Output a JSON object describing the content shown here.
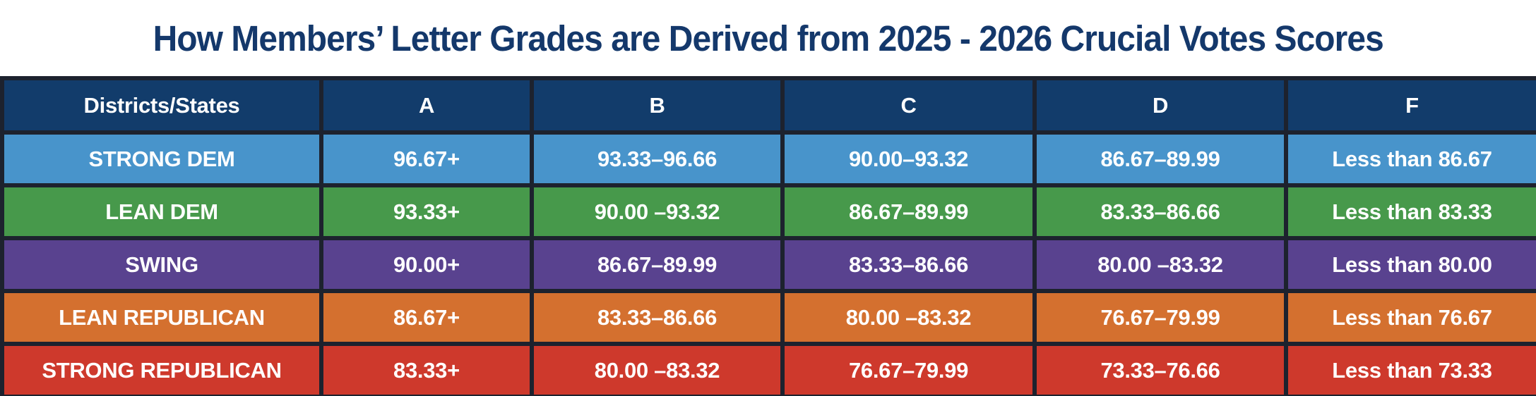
{
  "title": "How Members’ Letter Grades are Derived from 2025 - 2026 Crucial Votes Scores",
  "colors": {
    "title_text": "#14386b",
    "header_bg": "#123c6b",
    "header_text": "#ffffff",
    "cell_text": "#ffffff",
    "border": "#1d222e",
    "page_bg": "#ffffff",
    "strong_dem": "#4894cb",
    "lean_dem": "#47994b",
    "swing": "#59428f",
    "lean_republican": "#d4702f",
    "strong_republican": "#ce392c"
  },
  "table": {
    "columns": [
      "Districts/States",
      "A",
      "B",
      "C",
      "D",
      "F"
    ],
    "rows": [
      {
        "label": "STRONG DEM",
        "color": "#4894cb",
        "grades": [
          "96.67+",
          "93.33–96.66",
          "90.00–93.32",
          "86.67–89.99",
          "Less than 86.67"
        ]
      },
      {
        "label": "LEAN DEM",
        "color": "#47994b",
        "grades": [
          "93.33+",
          "90.00 –93.32",
          "86.67–89.99",
          "83.33–86.66",
          "Less than 83.33"
        ]
      },
      {
        "label": "SWING",
        "color": "#59428f",
        "grades": [
          "90.00+",
          "86.67–89.99",
          "83.33–86.66",
          "80.00 –83.32",
          "Less than 80.00"
        ]
      },
      {
        "label": "LEAN REPUBLICAN",
        "color": "#d4702f",
        "grades": [
          "86.67+",
          "83.33–86.66",
          "80.00 –83.32",
          "76.67–79.99",
          "Less than 76.67"
        ]
      },
      {
        "label": "STRONG REPUBLICAN",
        "color": "#ce392c",
        "grades": [
          "83.33+",
          "80.00 –83.32",
          "76.67–79.99",
          "73.33–76.66",
          "Less than 73.33"
        ]
      }
    ]
  },
  "chart_data": {
    "type": "table",
    "title": "How Members’ Letter Grades are Derived from 2025 - 2026 Crucial Votes Scores",
    "columns": [
      "Districts/States",
      "A",
      "B",
      "C",
      "D",
      "F"
    ],
    "rows": [
      [
        "STRONG DEM",
        "96.67+",
        "93.33–96.66",
        "90.00–93.32",
        "86.67–89.99",
        "Less than 86.67"
      ],
      [
        "LEAN DEM",
        "93.33+",
        "90.00–93.32",
        "86.67–89.99",
        "83.33–86.66",
        "Less than 83.33"
      ],
      [
        "SWING",
        "90.00+",
        "86.67–89.99",
        "83.33–86.66",
        "80.00–83.32",
        "Less than 80.00"
      ],
      [
        "LEAN REPUBLICAN",
        "86.67+",
        "83.33–86.66",
        "80.00–83.32",
        "76.67–79.99",
        "Less than 76.67"
      ],
      [
        "STRONG REPUBLICAN",
        "83.33+",
        "80.00–83.32",
        "76.67–79.99",
        "73.33–76.66",
        "Less than 73.33"
      ]
    ],
    "row_colors": [
      "#4894cb",
      "#47994b",
      "#59428f",
      "#d4702f",
      "#ce392c"
    ],
    "header_color": "#123c6b"
  }
}
